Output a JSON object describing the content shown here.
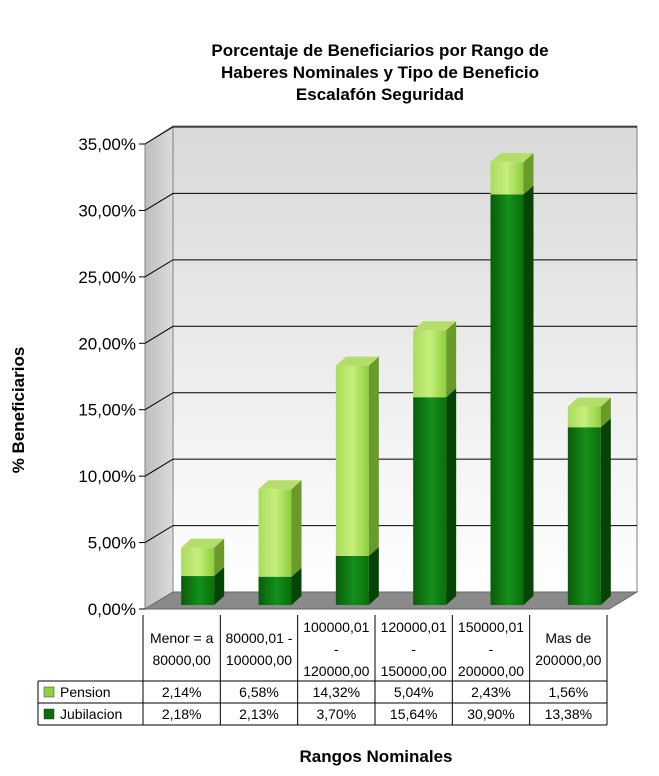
{
  "chart_data": {
    "type": "bar",
    "stacked": true,
    "title_lines": [
      "Porcentaje de Beneficiarios por Rango de",
      "Haberes Nominales y Tipo de Beneficio",
      "Escalafón Seguridad"
    ],
    "ylabel": "% Beneficiarios",
    "xlabel": "Rangos Nominales",
    "ylim": [
      0,
      35
    ],
    "y_ticks": [
      "0,00%",
      "5,00%",
      "10,00%",
      "15,00%",
      "20,00%",
      "25,00%",
      "30,00%",
      "35,00%"
    ],
    "grid": true,
    "legend_placement": "table-left",
    "categories": [
      [
        "Menor = a",
        "80000,00"
      ],
      [
        "80000,01 -",
        "100000,00"
      ],
      [
        "100000,01",
        "-",
        "120000,00"
      ],
      [
        "120000,01",
        "-",
        "150000,00"
      ],
      [
        "150000,01",
        "-",
        "200000,00"
      ],
      [
        "Mas de",
        "200000,00"
      ]
    ],
    "series": [
      {
        "name": "Pension",
        "color": "#8fd13f",
        "values": [
          2.14,
          6.58,
          14.32,
          5.04,
          2.43,
          1.56
        ],
        "labels": [
          "2,14%",
          "6,58%",
          "14,32%",
          "5,04%",
          "2,43%",
          "1,56%"
        ]
      },
      {
        "name": "Jubilacion",
        "color": "#0b6e0b",
        "values": [
          2.18,
          2.13,
          3.7,
          15.64,
          30.9,
          13.38
        ],
        "labels": [
          "2,18%",
          "2,13%",
          "3,70%",
          "15,64%",
          "30,90%",
          "13,38%"
        ]
      }
    ]
  }
}
